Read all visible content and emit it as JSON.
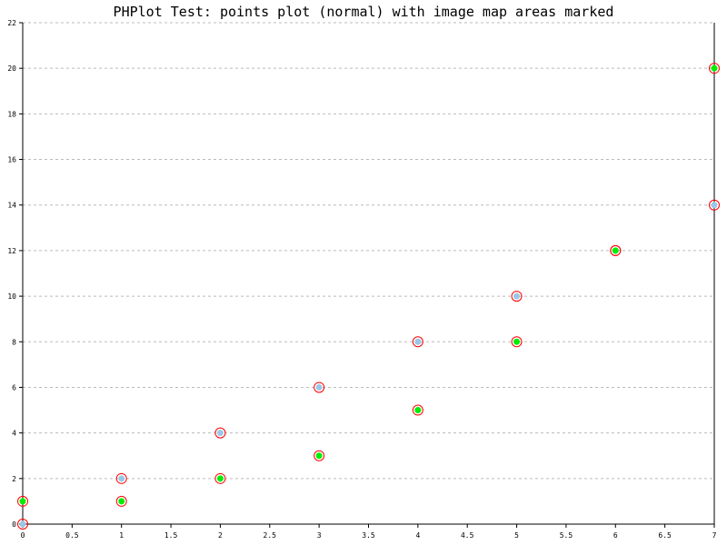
{
  "chart_data": {
    "type": "scatter",
    "title": "PHPlot Test: points plot (normal) with image map areas marked",
    "xlabel": "",
    "ylabel": "",
    "xlim": [
      0,
      7
    ],
    "ylim": [
      0,
      22
    ],
    "x_ticks": [
      "0",
      "0.5",
      "1",
      "1.5",
      "2",
      "2.5",
      "3",
      "3.5",
      "4",
      "4.5",
      "5",
      "5.5",
      "6",
      "6.5",
      "7"
    ],
    "y_ticks": [
      "0",
      "2",
      "4",
      "6",
      "8",
      "10",
      "12",
      "14",
      "16",
      "18",
      "20",
      "22"
    ],
    "grid": "horizontal-dashed",
    "series": [
      {
        "color": "#9ac7e6",
        "points": [
          [
            0,
            0
          ],
          [
            1,
            2
          ],
          [
            2,
            4
          ],
          [
            3,
            6
          ],
          [
            4,
            8
          ],
          [
            5,
            10
          ],
          [
            6,
            12
          ],
          [
            7,
            14
          ]
        ]
      },
      {
        "color": "#00ee00",
        "points": [
          [
            0,
            1
          ],
          [
            1,
            1
          ],
          [
            2,
            2
          ],
          [
            3,
            3
          ],
          [
            4,
            5
          ],
          [
            5,
            8
          ],
          [
            6,
            12
          ],
          [
            7,
            20
          ]
        ]
      }
    ],
    "marker_ring_color": "#ff0000"
  }
}
